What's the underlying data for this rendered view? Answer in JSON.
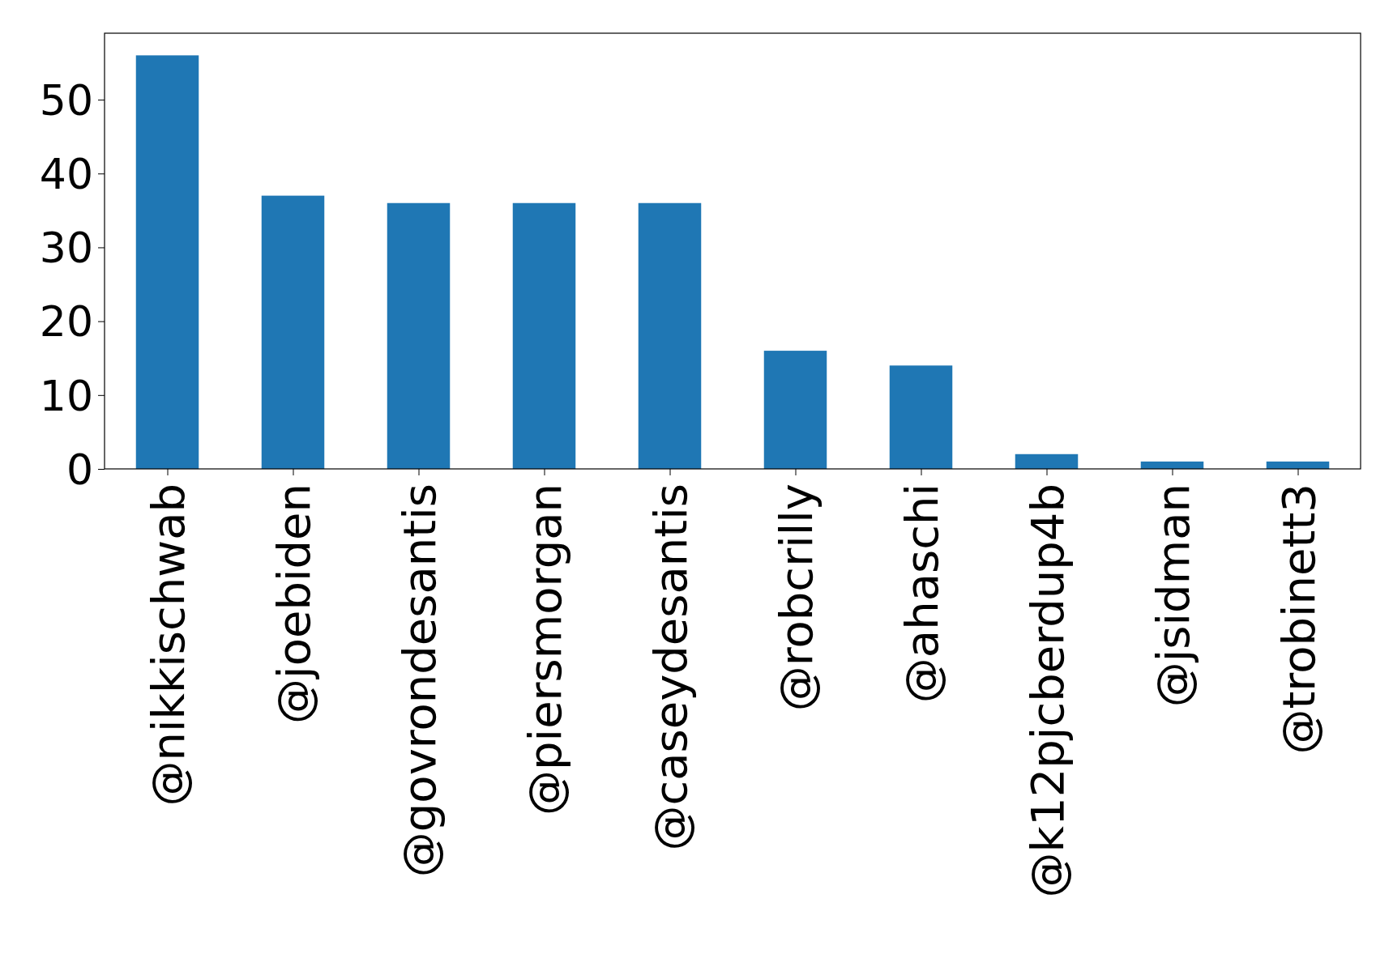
{
  "chart_data": {
    "type": "bar",
    "categories": [
      "@nikkischwab",
      "@joebiden",
      "@govrondesantis",
      "@piersmorgan",
      "@caseydesantis",
      "@robcrilly",
      "@ahaschi",
      "@k12pjcberdup4b",
      "@jsidman",
      "@trobinett3"
    ],
    "values": [
      56,
      37,
      36,
      36,
      36,
      16,
      14,
      2,
      1,
      1
    ],
    "color": "#1f77b4",
    "ylim": [
      0,
      59
    ],
    "yticks": [
      0,
      10,
      20,
      30,
      40,
      50
    ]
  }
}
